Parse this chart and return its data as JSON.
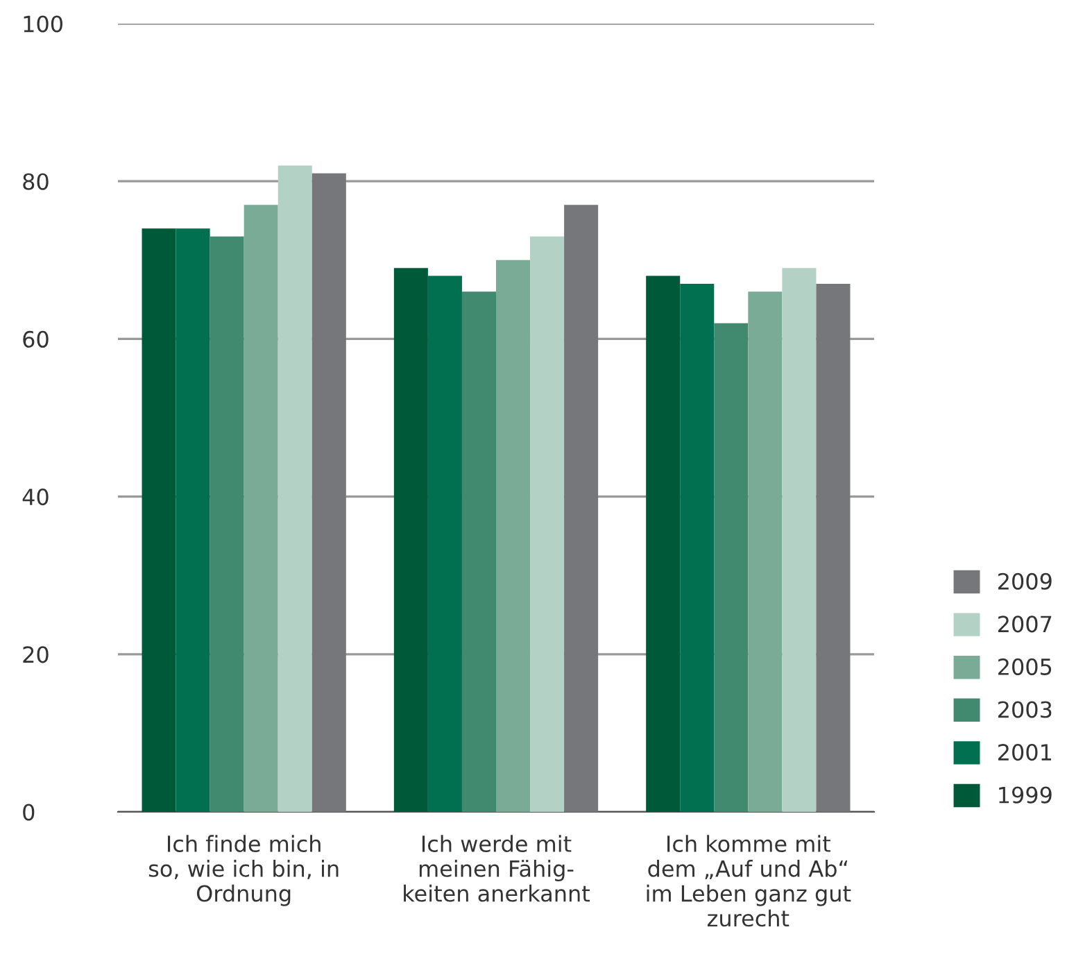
{
  "chart_data": {
    "type": "bar",
    "categories": [
      "Ich finde mich\nso, wie ich bin, in\nOrdnung",
      "Ich werde mit\nmeinen Fähig-\nkeiten anerkannt",
      "Ich komme mit\ndem „Auf und Ab“\nim Leben ganz gut\nzurecht"
    ],
    "series": [
      {
        "name": "1999",
        "color": "#005a3a",
        "values": [
          74,
          69,
          68
        ]
      },
      {
        "name": "2001",
        "color": "#007050",
        "values": [
          74,
          68,
          67
        ]
      },
      {
        "name": "2003",
        "color": "#418a70",
        "values": [
          73,
          66,
          62
        ]
      },
      {
        "name": "2005",
        "color": "#7aab97",
        "values": [
          77,
          70,
          66
        ]
      },
      {
        "name": "2007",
        "color": "#b3d1c4",
        "values": [
          82,
          73,
          69
        ]
      },
      {
        "name": "2009",
        "color": "#76777b",
        "values": [
          81,
          77,
          67
        ]
      }
    ],
    "ylim": [
      0,
      100
    ],
    "yticks": [
      0,
      20,
      40,
      60,
      80,
      100
    ],
    "grid": "y",
    "legend": "right"
  }
}
